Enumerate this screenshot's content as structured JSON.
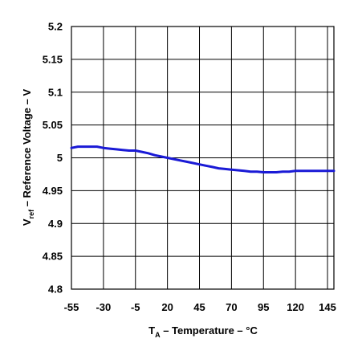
{
  "chart_data": {
    "type": "line",
    "xlabel_main": "T",
    "xlabel_sub": "A",
    "xlabel_rest": " – Temperature – °C",
    "ylabel_main": "V",
    "ylabel_sub": "ref",
    "ylabel_rest": " – Reference Voltage – V",
    "xlim": [
      -55,
      150
    ],
    "ylim": [
      4.8,
      5.2
    ],
    "x_ticks": [
      -55,
      -30,
      -5,
      20,
      45,
      70,
      95,
      120,
      145
    ],
    "x_tick_labels": [
      "-55",
      "-30",
      "-5",
      "20",
      "45",
      "70",
      "95",
      "120",
      "145"
    ],
    "y_ticks": [
      4.8,
      4.85,
      4.9,
      4.95,
      5.0,
      5.05,
      5.1,
      5.15,
      5.2
    ],
    "y_tick_labels": [
      "4.8",
      "4.85",
      "4.9",
      "4.95",
      "5",
      "5.05",
      "5.1",
      "5.15",
      "5.2"
    ],
    "x_grid": [
      -55,
      -30,
      -5,
      20,
      45,
      70,
      95,
      120,
      145,
      150
    ],
    "grid": true,
    "line_color": "#1a1ad6",
    "series": [
      {
        "x": [
          -55,
          -50,
          -45,
          -40,
          -35,
          -30,
          -25,
          -20,
          -15,
          -10,
          -5,
          0,
          5,
          10,
          15,
          20,
          25,
          30,
          35,
          40,
          45,
          50,
          55,
          60,
          65,
          70,
          75,
          80,
          85,
          90,
          95,
          100,
          105,
          110,
          115,
          120,
          125,
          130,
          135,
          140,
          145,
          150
        ],
        "y": [
          5.015,
          5.017,
          5.017,
          5.017,
          5.017,
          5.015,
          5.014,
          5.013,
          5.012,
          5.011,
          5.011,
          5.009,
          5.007,
          5.004,
          5.002,
          5.0,
          4.998,
          4.996,
          4.994,
          4.992,
          4.99,
          4.988,
          4.986,
          4.984,
          4.983,
          4.982,
          4.981,
          4.98,
          4.979,
          4.979,
          4.978,
          4.978,
          4.978,
          4.979,
          4.979,
          4.98,
          4.98,
          4.98,
          4.98,
          4.98,
          4.98,
          4.98
        ]
      }
    ]
  }
}
